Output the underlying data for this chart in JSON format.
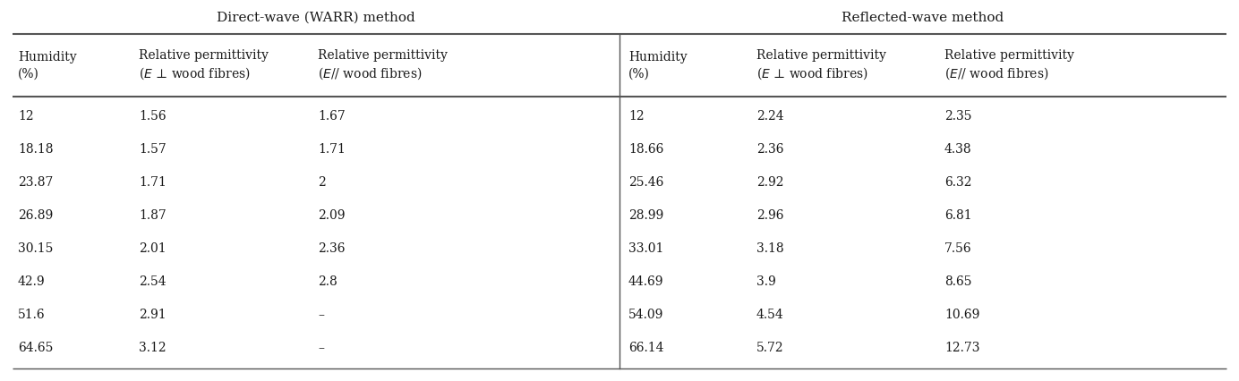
{
  "section1_header": "Direct-wave (WARR) method",
  "section2_header": "Reflected-wave method",
  "section1_data": [
    [
      "12",
      "1.56",
      "1.67"
    ],
    [
      "18.18",
      "1.57",
      "1.71"
    ],
    [
      "23.87",
      "1.71",
      "2"
    ],
    [
      "26.89",
      "1.87",
      "2.09"
    ],
    [
      "30.15",
      "2.01",
      "2.36"
    ],
    [
      "42.9",
      "2.54",
      "2.8"
    ],
    [
      "51.6",
      "2.91",
      "–"
    ],
    [
      "64.65",
      "3.12",
      "–"
    ]
  ],
  "section2_data": [
    [
      "12",
      "2.24",
      "2.35"
    ],
    [
      "18.66",
      "2.36",
      "4.38"
    ],
    [
      "25.46",
      "2.92",
      "6.32"
    ],
    [
      "28.99",
      "2.96",
      "6.81"
    ],
    [
      "33.01",
      "3.18",
      "7.56"
    ],
    [
      "44.69",
      "3.9",
      "8.65"
    ],
    [
      "54.09",
      "4.54",
      "10.69"
    ],
    [
      "66.14",
      "5.72",
      "12.73"
    ]
  ],
  "background_color": "#ffffff",
  "text_color": "#1a1a1a",
  "line_color": "#555555",
  "font_size_group": 11,
  "font_size_col": 10,
  "font_size_data": 10,
  "col1_hdr0": "Humidity\n(%)",
  "col1_hdr1_line1": "Relative permittivity",
  "col1_hdr1_line2": "(ε ⊥ wood fibres)",
  "col1_hdr2_line1": "Relative permittivity",
  "col1_hdr2_line2": "(ε// wood fibres)"
}
